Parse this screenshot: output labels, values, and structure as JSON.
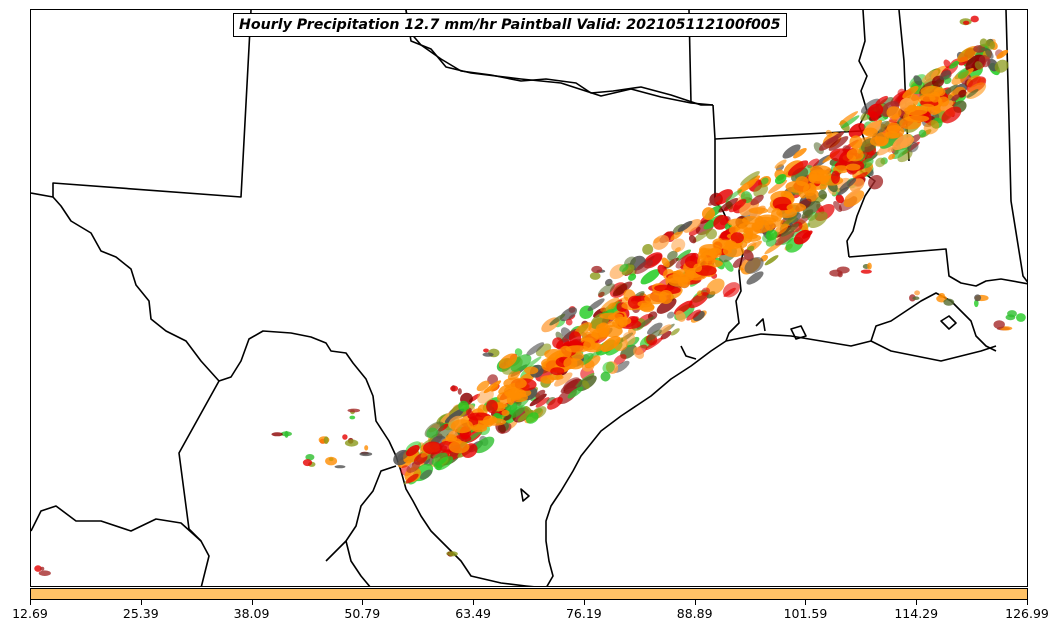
{
  "title": "Hourly Precipitation 12.7 mm/hr Paintball Valid: 202105112100f005",
  "colorbar": {
    "color": "#FFC266",
    "ticks": [
      "12.69",
      "25.39",
      "38.09",
      "50.79",
      "63.49",
      "76.19",
      "88.89",
      "101.59",
      "114.29",
      "126.99"
    ]
  },
  "colors": {
    "orange": "#FF8C00",
    "light_orange": "#FFA040",
    "red": "#E60000",
    "dark_red": "#8B0000",
    "brown_red": "#A52A2A",
    "green": "#2DBE2D",
    "bright_green": "#22CC22",
    "olive": "#8B9A1A",
    "gray": "#505050",
    "dark_olive": "#556B2F"
  }
}
